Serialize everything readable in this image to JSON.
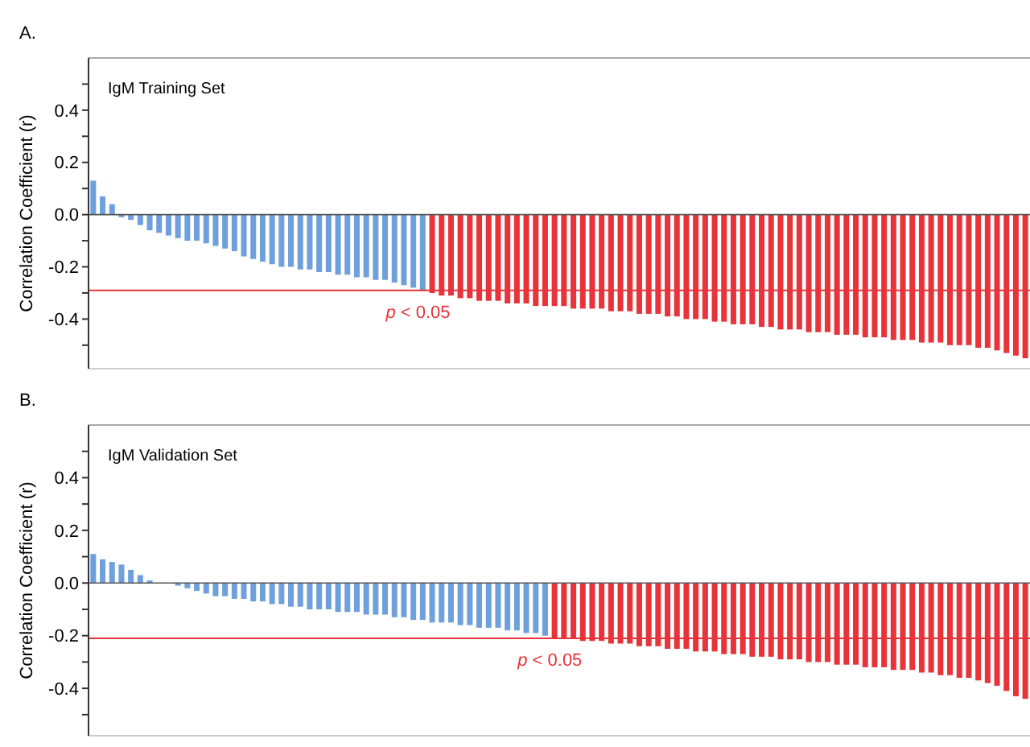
{
  "chart_data": [
    {
      "type": "bar",
      "title": "A.",
      "ylabel": "Correlation Coefficient (r)",
      "annotations": [
        "IgM Training Set"
      ],
      "categories": [
        null,
        null,
        null,
        null,
        null,
        null,
        null,
        null,
        null,
        null,
        null,
        null,
        null,
        null,
        null,
        null,
        null,
        null,
        null,
        null,
        null,
        null,
        null,
        null,
        null,
        null,
        null,
        null,
        null,
        null,
        null,
        null,
        null,
        null,
        null,
        null,
        null,
        null,
        null,
        null,
        null,
        null,
        null,
        null,
        null,
        null,
        null,
        null,
        null,
        null,
        null,
        null,
        null,
        null,
        null,
        null,
        null,
        null,
        null,
        null,
        null,
        null,
        null,
        null,
        null,
        null,
        null,
        null,
        null,
        null,
        null,
        null,
        null,
        null,
        null,
        null,
        null,
        null,
        null,
        null,
        null,
        null,
        null,
        null,
        null,
        null,
        null,
        null,
        null,
        null,
        null,
        null,
        null,
        null,
        null,
        null,
        null,
        null,
        null,
        null
      ],
      "values": [
        0.13,
        0.07,
        0.04,
        -0.01,
        -0.02,
        -0.04,
        -0.06,
        -0.07,
        -0.08,
        -0.09,
        -0.1,
        -0.1,
        -0.11,
        -0.12,
        -0.13,
        -0.14,
        -0.16,
        -0.17,
        -0.18,
        -0.19,
        -0.2,
        -0.2,
        -0.21,
        -0.21,
        -0.22,
        -0.22,
        -0.23,
        -0.23,
        -0.24,
        -0.24,
        -0.25,
        -0.25,
        -0.26,
        -0.27,
        -0.28,
        -0.29,
        -0.3,
        -0.31,
        -0.31,
        -0.32,
        -0.32,
        -0.33,
        -0.33,
        -0.33,
        -0.34,
        -0.34,
        -0.34,
        -0.35,
        -0.35,
        -0.35,
        -0.35,
        -0.36,
        -0.36,
        -0.36,
        -0.36,
        -0.37,
        -0.37,
        -0.37,
        -0.38,
        -0.38,
        -0.38,
        -0.39,
        -0.39,
        -0.4,
        -0.4,
        -0.4,
        -0.41,
        -0.41,
        -0.42,
        -0.42,
        -0.42,
        -0.43,
        -0.43,
        -0.44,
        -0.44,
        -0.44,
        -0.45,
        -0.45,
        -0.45,
        -0.46,
        -0.46,
        -0.46,
        -0.47,
        -0.47,
        -0.47,
        -0.48,
        -0.48,
        -0.48,
        -0.49,
        -0.49,
        -0.49,
        -0.5,
        -0.5,
        -0.5,
        -0.51,
        -0.51,
        -0.52,
        -0.53,
        -0.54,
        -0.55
      ],
      "colors": [
        "#6fa0dc",
        "#6fa0dc",
        "#6fa0dc",
        "#6fa0dc",
        "#6fa0dc",
        "#6fa0dc",
        "#6fa0dc",
        "#6fa0dc",
        "#6fa0dc",
        "#6fa0dc",
        "#6fa0dc",
        "#6fa0dc",
        "#6fa0dc",
        "#6fa0dc",
        "#6fa0dc",
        "#6fa0dc",
        "#6fa0dc",
        "#6fa0dc",
        "#6fa0dc",
        "#6fa0dc",
        "#6fa0dc",
        "#6fa0dc",
        "#6fa0dc",
        "#6fa0dc",
        "#6fa0dc",
        "#6fa0dc",
        "#6fa0dc",
        "#6fa0dc",
        "#6fa0dc",
        "#6fa0dc",
        "#6fa0dc",
        "#6fa0dc",
        "#6fa0dc",
        "#6fa0dc",
        "#6fa0dc",
        "#6fa0dc",
        "#e8333a",
        "#e8333a",
        "#e8333a",
        "#e8333a",
        "#e8333a",
        "#e8333a",
        "#e8333a",
        "#e8333a",
        "#e8333a",
        "#e8333a",
        "#e8333a",
        "#e8333a",
        "#e8333a",
        "#e8333a",
        "#e8333a",
        "#e8333a",
        "#e8333a",
        "#e8333a",
        "#e8333a",
        "#e8333a",
        "#e8333a",
        "#e8333a",
        "#e8333a",
        "#e8333a",
        "#e8333a",
        "#e8333a",
        "#e8333a",
        "#e8333a",
        "#e8333a",
        "#e8333a",
        "#e8333a",
        "#e8333a",
        "#e8333a",
        "#e8333a",
        "#e8333a",
        "#e8333a",
        "#e8333a",
        "#e8333a",
        "#e8333a",
        "#e8333a",
        "#e8333a",
        "#e8333a",
        "#e8333a",
        "#e8333a",
        "#e8333a",
        "#e8333a",
        "#e8333a",
        "#e8333a",
        "#e8333a",
        "#e8333a",
        "#e8333a",
        "#e8333a",
        "#e8333a",
        "#e8333a",
        "#e8333a",
        "#e8333a",
        "#e8333a",
        "#e8333a",
        "#e8333a",
        "#e8333a",
        "#e8333a",
        "#e8333a",
        "#e8333a",
        "#e8333a"
      ],
      "ylim": [
        -0.59,
        0.6
      ],
      "yticks": [
        {
          "value": -0.5,
          "label": null
        },
        -0.4,
        {
          "value": -0.3,
          "label": null
        },
        -0.2,
        {
          "value": -0.1,
          "label": null
        },
        {
          "value": 0,
          "label": "0.0"
        },
        {
          "value": 0.1,
          "label": null
        },
        0.2,
        {
          "value": 0.3,
          "label": null
        },
        0.4,
        {
          "value": 0.5,
          "label": null
        }
      ],
      "tick_labels": "y",
      "ref_lines": [
        {
          "axis": "y",
          "value": -0.29,
          "label": "p < 0.05",
          "color": "#e8333a"
        }
      ]
    },
    {
      "type": "bar",
      "title": "B.",
      "ylabel": "Correlation Coefficient (r)",
      "annotations": [
        "IgM Validation Set"
      ],
      "categories": [
        null,
        null,
        null,
        null,
        null,
        null,
        null,
        null,
        null,
        null,
        null,
        null,
        null,
        null,
        null,
        null,
        null,
        null,
        null,
        null,
        null,
        null,
        null,
        null,
        null,
        null,
        null,
        null,
        null,
        null,
        null,
        null,
        null,
        null,
        null,
        null,
        null,
        null,
        null,
        null,
        null,
        null,
        null,
        null,
        null,
        null,
        null,
        null,
        null,
        null,
        null,
        null,
        null,
        null,
        null,
        null,
        null,
        null,
        null,
        null,
        null,
        null,
        null,
        null,
        null,
        null,
        null,
        null,
        null,
        null,
        null,
        null,
        null,
        null,
        null,
        null,
        null,
        null,
        null,
        null,
        null,
        null,
        null,
        null,
        null,
        null,
        null,
        null,
        null,
        null,
        null,
        null,
        null,
        null,
        null,
        null,
        null,
        null,
        null,
        null
      ],
      "values": [
        0.11,
        0.09,
        0.08,
        0.07,
        0.05,
        0.03,
        0.01,
        0.0,
        0.0,
        -0.01,
        -0.02,
        -0.03,
        -0.04,
        -0.05,
        -0.05,
        -0.06,
        -0.06,
        -0.07,
        -0.07,
        -0.08,
        -0.08,
        -0.09,
        -0.09,
        -0.1,
        -0.1,
        -0.1,
        -0.11,
        -0.11,
        -0.11,
        -0.12,
        -0.12,
        -0.12,
        -0.13,
        -0.13,
        -0.14,
        -0.14,
        -0.15,
        -0.15,
        -0.15,
        -0.16,
        -0.16,
        -0.17,
        -0.17,
        -0.17,
        -0.18,
        -0.18,
        -0.19,
        -0.19,
        -0.2,
        -0.21,
        -0.21,
        -0.21,
        -0.22,
        -0.22,
        -0.22,
        -0.23,
        -0.23,
        -0.23,
        -0.24,
        -0.24,
        -0.24,
        -0.25,
        -0.25,
        -0.25,
        -0.26,
        -0.26,
        -0.26,
        -0.27,
        -0.27,
        -0.27,
        -0.28,
        -0.28,
        -0.28,
        -0.29,
        -0.29,
        -0.29,
        -0.3,
        -0.3,
        -0.3,
        -0.31,
        -0.31,
        -0.31,
        -0.32,
        -0.32,
        -0.32,
        -0.33,
        -0.33,
        -0.33,
        -0.34,
        -0.34,
        -0.35,
        -0.35,
        -0.36,
        -0.36,
        -0.37,
        -0.38,
        -0.39,
        -0.41,
        -0.43,
        -0.44
      ],
      "colors": [
        "#6fa0dc",
        "#6fa0dc",
        "#6fa0dc",
        "#6fa0dc",
        "#6fa0dc",
        "#6fa0dc",
        "#6fa0dc",
        "#6fa0dc",
        "#6fa0dc",
        "#6fa0dc",
        "#6fa0dc",
        "#6fa0dc",
        "#6fa0dc",
        "#6fa0dc",
        "#6fa0dc",
        "#6fa0dc",
        "#6fa0dc",
        "#6fa0dc",
        "#6fa0dc",
        "#6fa0dc",
        "#6fa0dc",
        "#6fa0dc",
        "#6fa0dc",
        "#6fa0dc",
        "#6fa0dc",
        "#6fa0dc",
        "#6fa0dc",
        "#6fa0dc",
        "#6fa0dc",
        "#6fa0dc",
        "#6fa0dc",
        "#6fa0dc",
        "#6fa0dc",
        "#6fa0dc",
        "#6fa0dc",
        "#6fa0dc",
        "#6fa0dc",
        "#6fa0dc",
        "#6fa0dc",
        "#6fa0dc",
        "#6fa0dc",
        "#6fa0dc",
        "#6fa0dc",
        "#6fa0dc",
        "#6fa0dc",
        "#6fa0dc",
        "#6fa0dc",
        "#6fa0dc",
        "#6fa0dc",
        "#e8333a",
        "#e8333a",
        "#e8333a",
        "#e8333a",
        "#e8333a",
        "#e8333a",
        "#e8333a",
        "#e8333a",
        "#e8333a",
        "#e8333a",
        "#e8333a",
        "#e8333a",
        "#e8333a",
        "#e8333a",
        "#e8333a",
        "#e8333a",
        "#e8333a",
        "#e8333a",
        "#e8333a",
        "#e8333a",
        "#e8333a",
        "#e8333a",
        "#e8333a",
        "#e8333a",
        "#e8333a",
        "#e8333a",
        "#e8333a",
        "#e8333a",
        "#e8333a",
        "#e8333a",
        "#e8333a",
        "#e8333a",
        "#e8333a",
        "#e8333a",
        "#e8333a",
        "#e8333a",
        "#e8333a",
        "#e8333a",
        "#e8333a",
        "#e8333a",
        "#e8333a",
        "#e8333a",
        "#e8333a",
        "#e8333a",
        "#e8333a",
        "#e8333a",
        "#e8333a",
        "#e8333a",
        "#e8333a",
        "#e8333a",
        "#e8333a"
      ],
      "ylim": [
        -0.58,
        0.6
      ],
      "yticks": [
        {
          "value": -0.5,
          "label": null
        },
        -0.4,
        {
          "value": -0.3,
          "label": null
        },
        -0.2,
        {
          "value": -0.1,
          "label": null
        },
        {
          "value": 0,
          "label": "0.0"
        },
        {
          "value": 0.1,
          "label": null
        },
        0.2,
        {
          "value": 0.3,
          "label": null
        },
        0.4,
        {
          "value": 0.5,
          "label": null
        }
      ],
      "tick_labels": "y",
      "ref_lines": [
        {
          "axis": "y",
          "value": -0.21,
          "label": "p < 0.05",
          "color": "#e8333a"
        }
      ]
    }
  ]
}
